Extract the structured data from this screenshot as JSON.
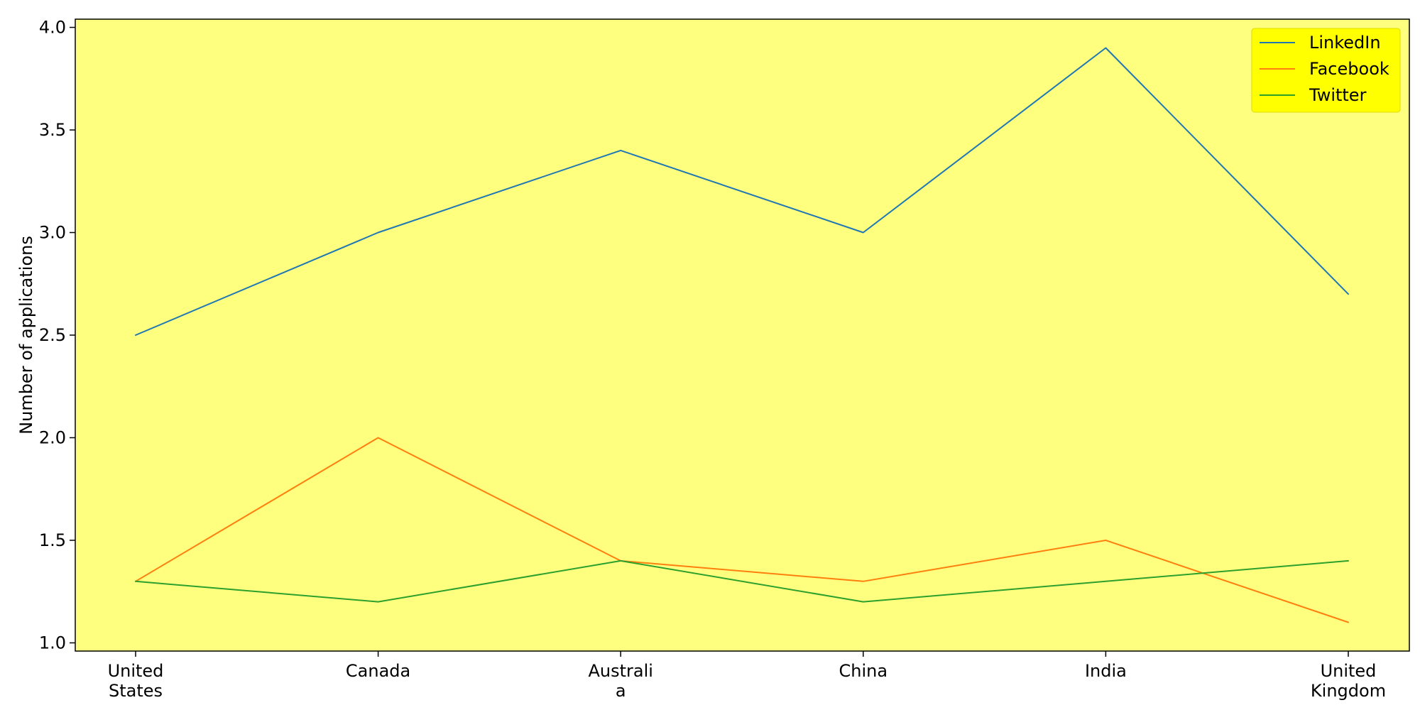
{
  "chart_data": {
    "type": "line",
    "categories": [
      [
        "United",
        "States"
      ],
      [
        "Canada"
      ],
      [
        "Australi",
        "a"
      ],
      [
        "China"
      ],
      [
        "India"
      ],
      [
        "United",
        "Kingdom"
      ]
    ],
    "series": [
      {
        "name": "LinkedIn",
        "color": "#1f77b4",
        "values": [
          2.5,
          3.0,
          3.4,
          3.0,
          3.9,
          2.7
        ]
      },
      {
        "name": "Facebook",
        "color": "#ff7f0e",
        "values": [
          1.3,
          2.0,
          1.4,
          1.3,
          1.5,
          1.1
        ]
      },
      {
        "name": "Twitter",
        "color": "#2ca02c",
        "values": [
          1.3,
          1.2,
          1.4,
          1.2,
          1.3,
          1.4
        ]
      }
    ],
    "xlabel": "",
    "ylabel": "Number of applications",
    "ylim": [
      0.96,
      4.04
    ],
    "yticks": [
      "1.0",
      "1.5",
      "2.0",
      "2.5",
      "3.0",
      "3.5",
      "4.0"
    ],
    "grid": false,
    "legend_position": "top-right",
    "plot_background": "#ffff7f",
    "legend_background": "#ffff00"
  }
}
